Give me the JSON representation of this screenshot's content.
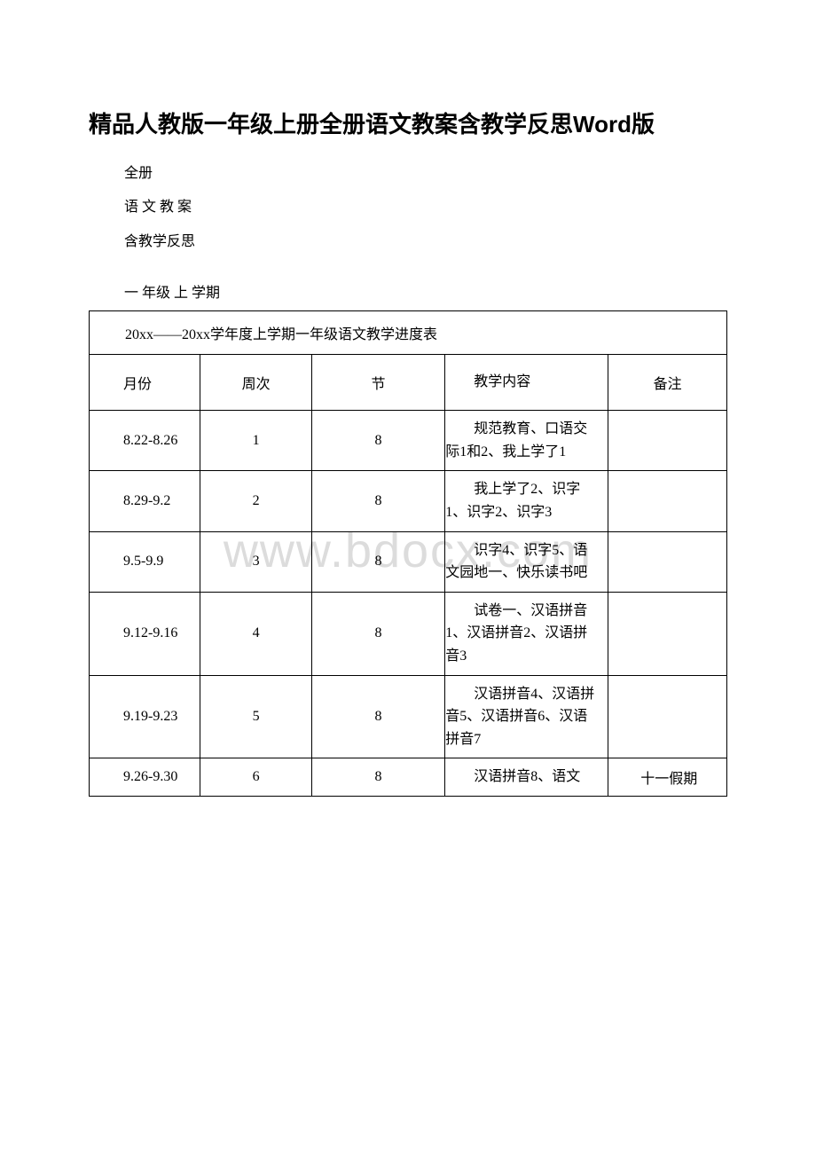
{
  "title": "精品人教版一年级上册全册语文教案含教学反思Word版",
  "intro": {
    "line1": "全册",
    "line2": "语 文 教 案",
    "line3": "含教学反思"
  },
  "semester": "一 年级 上 学期",
  "watermark": "www.bdocx.com",
  "table": {
    "caption": "20xx——20xx学年度上学期一年级语文教学进度表",
    "headers": {
      "month": "月份",
      "week": "周次",
      "period": "节",
      "content": "教学内容",
      "note": "备注"
    },
    "rows": [
      {
        "month": "8.22-8.26",
        "week": "1",
        "period": "8",
        "content": "规范教育、口语交际1和2、我上学了1",
        "note": ""
      },
      {
        "month": "8.29-9.2",
        "week": "2",
        "period": "8",
        "content": "我上学了2、识字1、识字2、识字3",
        "note": ""
      },
      {
        "month": "9.5-9.9",
        "week": "3",
        "period": "8",
        "content": "识字4、识字5、语文园地一、快乐读书吧",
        "note": ""
      },
      {
        "month": "9.12-9.16",
        "week": "4",
        "period": "8",
        "content": "试卷一、汉语拼音1、汉语拼音2、汉语拼音3",
        "note": ""
      },
      {
        "month": "9.19-9.23",
        "week": "5",
        "period": "8",
        "content": "汉语拼音4、汉语拼音5、汉语拼音6、汉语拼音7",
        "note": ""
      },
      {
        "month": "9.26-9.30",
        "week": "6",
        "period": "8",
        "content": "汉语拼音8、语文",
        "note": "十一假期"
      }
    ]
  }
}
